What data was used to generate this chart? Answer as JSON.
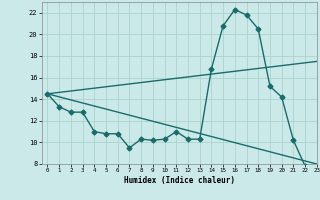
{
  "title": "",
  "xlabel": "Humidex (Indice chaleur)",
  "xlim": [
    -0.5,
    23
  ],
  "ylim": [
    8,
    23
  ],
  "yticks": [
    8,
    10,
    12,
    14,
    16,
    18,
    20,
    22
  ],
  "xticks": [
    0,
    1,
    2,
    3,
    4,
    5,
    6,
    7,
    8,
    9,
    10,
    11,
    12,
    13,
    14,
    15,
    16,
    17,
    18,
    19,
    20,
    21,
    22,
    23
  ],
  "background_color": "#cbe9e9",
  "grid_color": "#aad4cc",
  "line_color": "#1a6b6b",
  "line1_x": [
    0,
    1,
    2,
    3,
    4,
    5,
    6,
    7,
    8,
    9,
    10,
    11,
    12,
    13,
    14,
    15,
    16,
    17,
    18,
    19,
    20,
    21,
    22,
    23
  ],
  "line1_y": [
    14.5,
    13.3,
    12.8,
    12.8,
    11.0,
    10.8,
    10.8,
    9.5,
    10.3,
    10.2,
    10.3,
    11.0,
    10.3,
    10.3,
    16.8,
    20.8,
    22.3,
    21.8,
    20.5,
    15.2,
    14.2,
    10.2,
    7.8,
    7.5
  ],
  "line2_x": [
    0,
    23
  ],
  "line2_y": [
    14.5,
    17.5
  ],
  "line3_x": [
    0,
    23
  ],
  "line3_y": [
    14.5,
    8.0
  ],
  "markersize": 2.5,
  "linewidth": 1.0
}
